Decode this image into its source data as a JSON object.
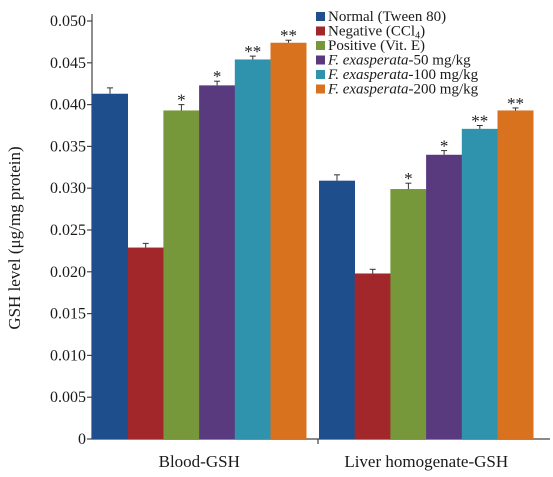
{
  "chart_data": {
    "type": "bar",
    "title": "",
    "ylabel": "GSH level (μg/mg protein)",
    "xlabel": "",
    "ylim": [
      0,
      0.05
    ],
    "yticks": [
      "0",
      "0.005",
      "0.010",
      "0.015",
      "0.020",
      "0.025",
      "0.030",
      "0.035",
      "0.040",
      "0.045",
      "0.050"
    ],
    "categories": [
      "Blood-GSH",
      "Liver homogenate-GSH"
    ],
    "legend_position": "top-right",
    "series": [
      {
        "name": "Normal (Tween 80)",
        "color": "#1f4e8c",
        "values": [
          0.0413,
          0.0309
        ],
        "errors": [
          0.0007,
          0.0007
        ],
        "significance": [
          "",
          ""
        ]
      },
      {
        "name": "Negative (CCl4)",
        "name_base": "Negative (CCl",
        "name_sub": "4",
        "name_end": ")",
        "color": "#a1272b",
        "values": [
          0.0229,
          0.0198
        ],
        "errors": [
          0.0005,
          0.0005
        ],
        "significance": [
          "",
          ""
        ]
      },
      {
        "name": "Positive (Vit. E)",
        "color": "#76973a",
        "values": [
          0.0393,
          0.0299
        ],
        "errors": [
          0.0007,
          0.0007
        ],
        "significance": [
          "*",
          "*"
        ]
      },
      {
        "name": "F. exasperata-50 mg/kg",
        "name_italic": "F. exasperata",
        "name_rest": "-50 mg/kg",
        "color": "#5a3a7e",
        "values": [
          0.0423,
          0.034
        ],
        "errors": [
          0.0005,
          0.0005
        ],
        "significance": [
          "*",
          "*"
        ]
      },
      {
        "name": "F. exasperata-100 mg/kg",
        "name_italic": "F. exasperata",
        "name_rest": "-100 mg/kg",
        "color": "#2f93ad",
        "values": [
          0.0454,
          0.0371
        ],
        "errors": [
          0.0004,
          0.0004
        ],
        "significance": [
          "**",
          "**"
        ]
      },
      {
        "name": "F. exasperata-200 mg/kg",
        "name_italic": "F. exasperata",
        "name_rest": "-200 mg/kg",
        "color": "#d9721f",
        "values": [
          0.0474,
          0.0393
        ],
        "errors": [
          0.0003,
          0.0003
        ],
        "significance": [
          "**",
          "**"
        ]
      }
    ]
  }
}
